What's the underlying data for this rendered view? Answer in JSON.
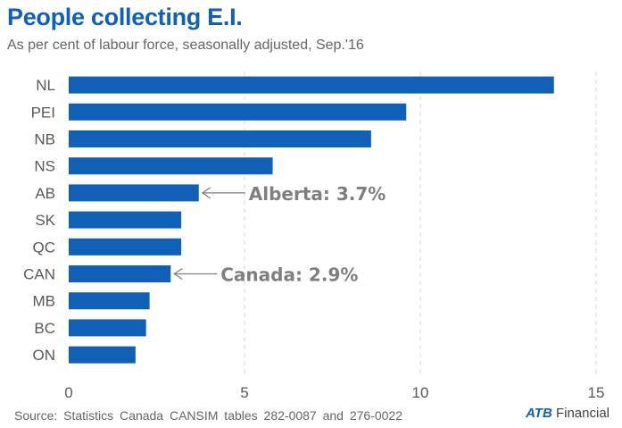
{
  "title": "People collecting E.I.",
  "subtitle": "As per cent of labour force, seasonally adjusted, Sep.'16",
  "source": "Source: Statistics Canada CANSIM tables 282-0087 and 276-0022",
  "logo": {
    "brand": "ATB",
    "suffix": "Financial"
  },
  "colors": {
    "bar": "#1160b7",
    "title": "#1160b7",
    "annotation": "#7f7f7f",
    "grid": "#d9d9d9"
  },
  "chart_data": {
    "type": "bar",
    "orientation": "horizontal",
    "categories": [
      "NL",
      "PEI",
      "NB",
      "NS",
      "AB",
      "SK",
      "QC",
      "CAN",
      "MB",
      "BC",
      "ON"
    ],
    "values": [
      13.8,
      9.6,
      8.6,
      5.8,
      3.7,
      3.2,
      3.2,
      2.9,
      2.3,
      2.2,
      1.9
    ],
    "xlim": [
      0,
      15
    ],
    "xticks": [
      0,
      5,
      10,
      15
    ],
    "grid": "vertical dashed",
    "annotations": [
      {
        "text": "Alberta: 3.7%",
        "category": "AB"
      },
      {
        "text": "Canada: 2.9%",
        "category": "CAN"
      }
    ]
  }
}
